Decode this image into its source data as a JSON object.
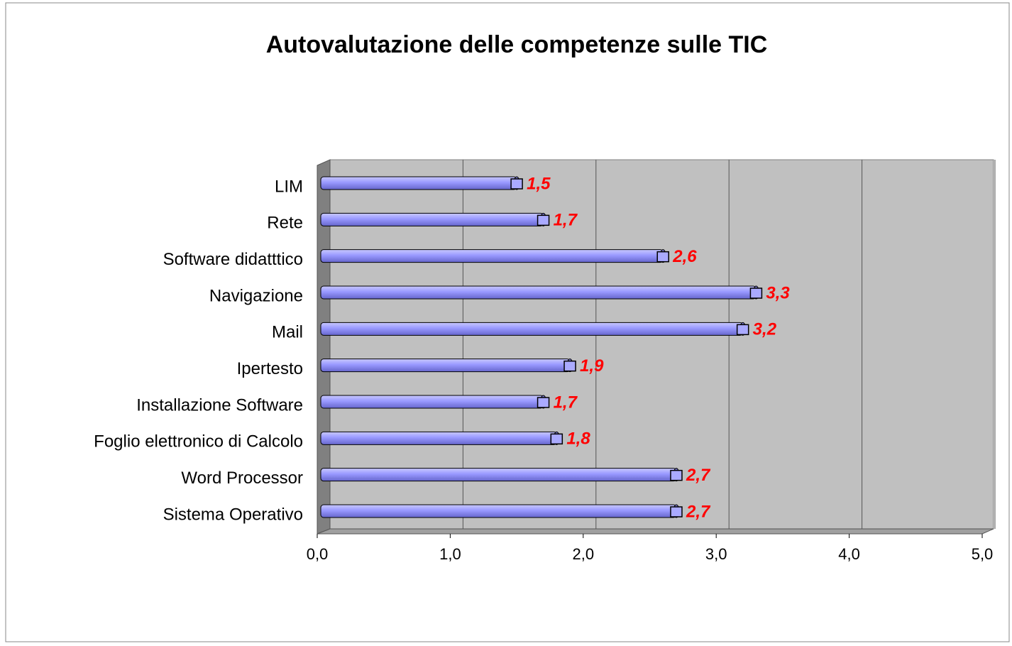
{
  "chart_data": {
    "type": "bar",
    "orientation": "horizontal",
    "title": "Autovalutazione delle competenze sulle TIC",
    "categories": [
      "Sistema Operativo",
      "Word Processor",
      "Foglio elettronico di Calcolo",
      "Installazione Software",
      "Ipertesto",
      "Mail",
      "Navigazione",
      "Software didatttico",
      "Rete",
      "LIM"
    ],
    "values": [
      2.7,
      2.7,
      1.8,
      1.7,
      1.9,
      3.2,
      3.3,
      2.6,
      1.7,
      1.5
    ],
    "value_labels": [
      "2,7",
      "2,7",
      "1,8",
      "1,7",
      "1,9",
      "3,2",
      "3,3",
      "2,6",
      "1,7",
      "1,5"
    ],
    "color": "#9999ff",
    "xlim": [
      0,
      5
    ],
    "xticks": [
      {
        "value": 0,
        "label": "0,0"
      },
      {
        "value": 1,
        "label": "1,0"
      },
      {
        "value": 2,
        "label": "2,0"
      },
      {
        "value": 3,
        "label": "3,0"
      },
      {
        "value": 4,
        "label": "4,0"
      },
      {
        "value": 5,
        "label": "5,0"
      }
    ],
    "grid": true
  }
}
